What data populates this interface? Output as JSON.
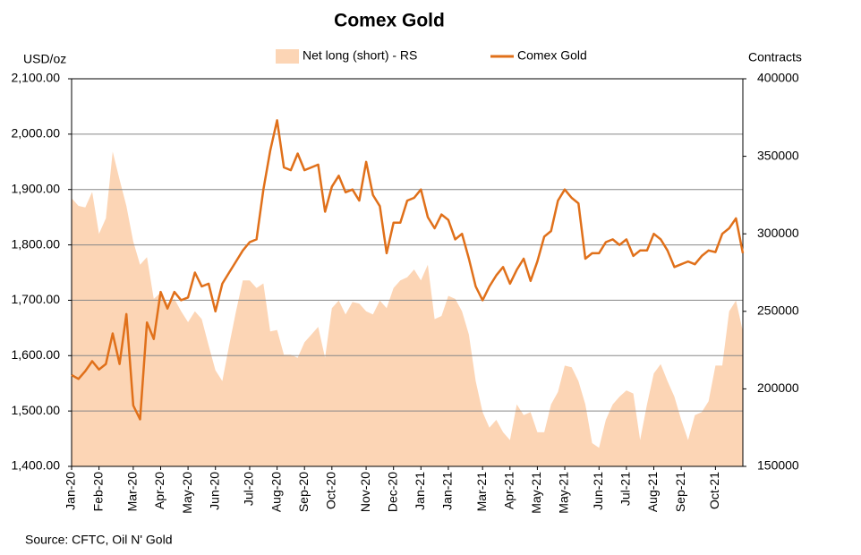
{
  "chart_data": {
    "type": "line",
    "title": "Comex Gold",
    "y_label": "USD/oz",
    "y2_label": "Contracts",
    "source": "Source: CFTC, Oil N' Gold",
    "categories": [
      "Jan-20",
      null,
      null,
      null,
      "Feb-20",
      null,
      null,
      null,
      null,
      "Mar-20",
      null,
      null,
      null,
      "Apr-20",
      null,
      null,
      null,
      "May-20",
      null,
      null,
      null,
      "Jun-20",
      null,
      null,
      null,
      null,
      "Jul-20",
      null,
      null,
      null,
      "Aug-20",
      null,
      null,
      null,
      "Sep-20",
      null,
      null,
      null,
      "Oct-20",
      null,
      null,
      null,
      null,
      "Nov-20",
      null,
      null,
      null,
      "Dec-20",
      null,
      null,
      null,
      "Jan-21",
      null,
      null,
      null,
      "Jan-21",
      null,
      null,
      null,
      null,
      "Mar-21",
      null,
      null,
      null,
      "Apr-21",
      null,
      null,
      null,
      "May-21",
      null,
      null,
      null,
      "May-21",
      null,
      null,
      null,
      null,
      "Jun-21",
      null,
      null,
      null,
      "Jul-21",
      null,
      null,
      null,
      "Aug-21",
      null,
      null,
      null,
      "Sep-21",
      null,
      null,
      null,
      null,
      "Oct-21",
      null,
      null,
      null,
      null
    ],
    "series": [
      {
        "name": "Net long (short) - RS",
        "color": "#fcd5b5",
        "type": "area",
        "axis": "y2",
        "values": [
          323000,
          318000,
          317000,
          327000,
          300000,
          310000,
          353000,
          335000,
          318000,
          295000,
          280000,
          285000,
          258000,
          262000,
          255000,
          258000,
          250000,
          243000,
          250000,
          245000,
          228000,
          212000,
          205000,
          228000,
          250000,
          270000,
          270000,
          265000,
          268000,
          237000,
          238000,
          222000,
          222000,
          220000,
          230000,
          235000,
          240000,
          220000,
          252000,
          257000,
          248000,
          256000,
          255000,
          250000,
          248000,
          257000,
          252000,
          265000,
          270000,
          272000,
          277000,
          270000,
          280000,
          245000,
          247000,
          260000,
          258000,
          250000,
          235000,
          205000,
          185000,
          175000,
          180000,
          172000,
          167000,
          190000,
          183000,
          185000,
          172000,
          172000,
          190000,
          198000,
          215000,
          214000,
          205000,
          190000,
          165000,
          162000,
          180000,
          190000,
          195000,
          199000,
          197000,
          167000,
          190000,
          210000,
          216000,
          205000,
          195000,
          180000,
          167000,
          183000,
          185000,
          192000,
          215000,
          215000,
          250000,
          257000,
          237000
        ]
      },
      {
        "name": "Comex Gold",
        "color": "#e0701a",
        "type": "line",
        "values": [
          1565,
          1558,
          1572,
          1590,
          1575,
          1585,
          1640,
          1585,
          1675,
          1510,
          1485,
          1660,
          1630,
          1715,
          1685,
          1715,
          1700,
          1705,
          1750,
          1725,
          1730,
          1680,
          1730,
          1750,
          1770,
          1790,
          1805,
          1810,
          1900,
          1970,
          2025,
          1940,
          1935,
          1965,
          1935,
          1940,
          1945,
          1860,
          1905,
          1925,
          1895,
          1900,
          1880,
          1950,
          1890,
          1870,
          1785,
          1840,
          1840,
          1880,
          1885,
          1900,
          1850,
          1830,
          1855,
          1845,
          1810,
          1820,
          1775,
          1725,
          1700,
          1725,
          1745,
          1760,
          1730,
          1755,
          1775,
          1735,
          1770,
          1815,
          1825,
          1880,
          1900,
          1885,
          1875,
          1775,
          1785,
          1785,
          1805,
          1810,
          1800,
          1810,
          1780,
          1790,
          1790,
          1820,
          1810,
          1790,
          1760,
          1765,
          1770,
          1765,
          1780,
          1790,
          1787,
          1820,
          1830,
          1848,
          1785
        ]
      }
    ],
    "ylim": [
      1400,
      2100
    ],
    "yticks": [
      {
        "value": 1400,
        "label": "1,400.00"
      },
      {
        "value": 1500,
        "label": "1,500.00"
      },
      {
        "value": 1600,
        "label": "1,600.00"
      },
      {
        "value": 1700,
        "label": "1,700.00"
      },
      {
        "value": 1800,
        "label": "1,800.00"
      },
      {
        "value": 1900,
        "label": "1,900.00"
      },
      {
        "value": 2000,
        "label": "2,000.00"
      },
      {
        "value": 2100,
        "label": "2,100.00"
      }
    ],
    "y2lim": [
      150000,
      400000
    ],
    "y2ticks": [
      150000,
      200000,
      250000,
      300000,
      350000,
      400000
    ],
    "grid": true
  }
}
